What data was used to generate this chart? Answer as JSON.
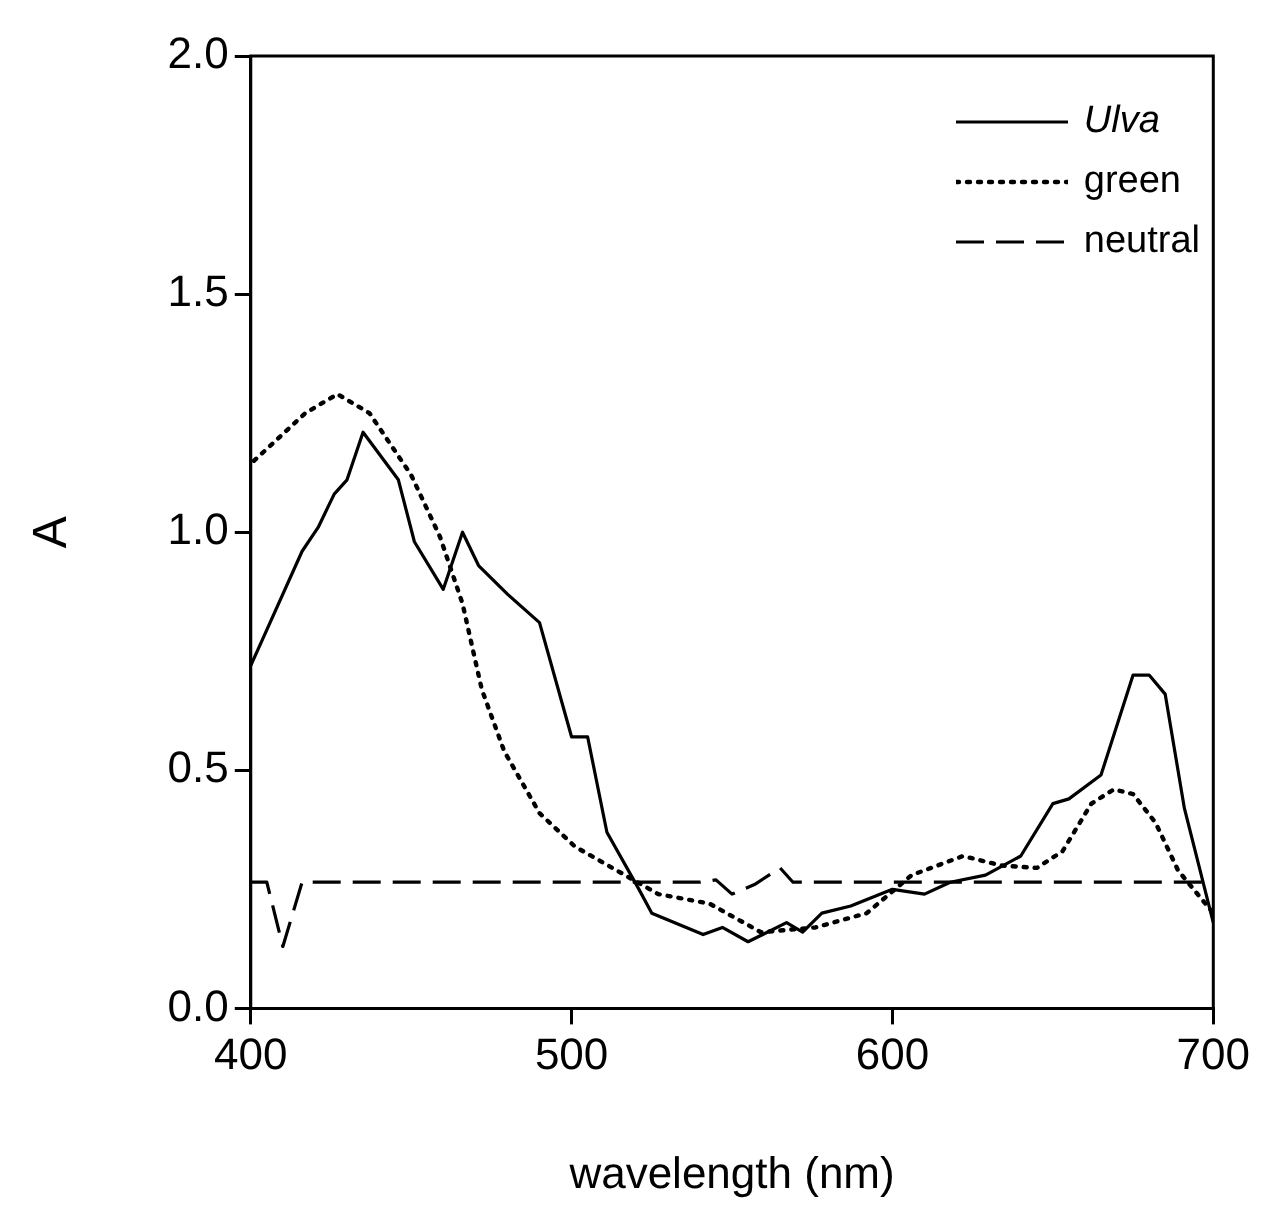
{
  "chart_data": {
    "type": "line",
    "xlabel": "wavelength (nm)",
    "ylabel": "A",
    "xlim": [
      400,
      700
    ],
    "xticks": [
      400,
      500,
      600,
      700
    ],
    "ylim": [
      0,
      2
    ],
    "yticks": [
      {
        "value": 0,
        "label": "0.0"
      },
      {
        "value": 0.5,
        "label": "0.5"
      },
      {
        "value": 1,
        "label": "1.0"
      },
      {
        "value": 1.5,
        "label": "1.5"
      },
      {
        "value": 2,
        "label": "2.0"
      }
    ],
    "grid": false,
    "legend": "top right",
    "marker": "none",
    "series": [
      {
        "name": "Ulva",
        "color": "#000000",
        "line_style": "solid",
        "x": [
          400,
          416,
          421,
          426,
          430,
          435,
          446,
          451,
          460,
          466,
          471,
          480,
          490,
          500,
          505,
          511,
          521,
          525,
          541,
          547,
          555,
          567,
          572,
          578,
          587,
          600,
          610,
          618,
          629,
          640,
          650,
          655,
          665,
          675,
          680,
          685,
          691,
          700
        ],
        "values": [
          0.72,
          0.96,
          1.01,
          1.08,
          1.11,
          1.21,
          1.11,
          0.98,
          0.88,
          1.0,
          0.93,
          0.87,
          0.81,
          0.57,
          0.57,
          0.37,
          0.25,
          0.2,
          0.155,
          0.17,
          0.14,
          0.18,
          0.16,
          0.2,
          0.215,
          0.25,
          0.24,
          0.265,
          0.28,
          0.32,
          0.43,
          0.44,
          0.49,
          0.7,
          0.7,
          0.66,
          0.42,
          0.18
        ]
      },
      {
        "name": "green",
        "color": "#000000",
        "line_style": "dotted",
        "x": [
          401,
          417,
          427,
          437,
          450,
          459,
          466,
          472,
          479,
          490,
          501,
          514,
          527,
          543,
          559,
          576,
          592,
          606,
          622,
          634,
          645,
          653,
          662,
          669,
          675,
          682,
          689,
          700
        ],
        "values": [
          1.15,
          1.25,
          1.29,
          1.25,
          1.12,
          0.99,
          0.85,
          0.67,
          0.54,
          0.41,
          0.34,
          0.29,
          0.24,
          0.22,
          0.16,
          0.17,
          0.2,
          0.28,
          0.32,
          0.3,
          0.295,
          0.33,
          0.43,
          0.46,
          0.45,
          0.39,
          0.29,
          0.2
        ]
      },
      {
        "name": "neutral",
        "color": "#000000",
        "line_style": "dashed",
        "x": [
          400,
          405,
          410,
          416,
          540,
          545,
          550,
          557,
          565,
          569,
          700
        ],
        "values": [
          0.265,
          0.265,
          0.13,
          0.265,
          0.265,
          0.27,
          0.24,
          0.26,
          0.295,
          0.265,
          0.265
        ]
      }
    ]
  }
}
